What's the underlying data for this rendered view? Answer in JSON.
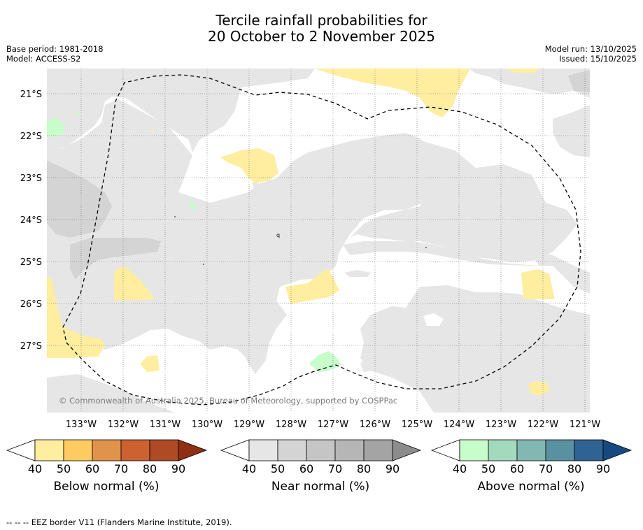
{
  "header": {
    "title_line1": "Tercile rainfall probabilities for",
    "title_line2": "20 October to 2 November 2025",
    "base_period": "Base period: 1981-2018",
    "model": "Model: ACCESS-S2",
    "model_run": "Model run: 13/10/2025",
    "issued": "Issued: 15/10/2025"
  },
  "map": {
    "lat_labels": [
      "21°S",
      "22°S",
      "23°S",
      "24°S",
      "25°S",
      "26°S",
      "27°S"
    ],
    "lon_labels": [
      "133°W",
      "132°W",
      "131°W",
      "130°W",
      "129°W",
      "128°W",
      "127°W",
      "126°W",
      "125°W",
      "124°W",
      "123°W",
      "122°W",
      "121°W"
    ],
    "copyright": "© Commonwealth of Australia 2025, Bureau of Meteorology, supported by COSPPac",
    "marker": "q",
    "colors": {
      "near_normal_40": "#e6e6e6",
      "near_normal_50": "#d4d4d4",
      "below_normal_40": "#ffeda0",
      "above_normal_40": "#c7fccb"
    }
  },
  "legends": [
    {
      "label": "Below normal (%)",
      "ticks": [
        "40",
        "50",
        "60",
        "70",
        "80",
        "90"
      ],
      "colors": [
        "#ffeda0",
        "#fecb62",
        "#e0934a",
        "#cb6230",
        "#ae4a26",
        "#8f2f14"
      ]
    },
    {
      "label": "Near normal (%)",
      "ticks": [
        "40",
        "50",
        "60",
        "70",
        "80",
        "90"
      ],
      "colors": [
        "#e6e6e6",
        "#d4d4d4",
        "#c5c5c5",
        "#b6b6b6",
        "#a4a4a4",
        "#8c8c8c"
      ]
    },
    {
      "label": "Above normal (%)",
      "ticks": [
        "40",
        "50",
        "60",
        "70",
        "80",
        "90"
      ],
      "colors": [
        "#c7fccb",
        "#a3d9bd",
        "#82b8b1",
        "#5a91a0",
        "#2f6393",
        "#16497f"
      ]
    }
  ],
  "footnote": "--  --  -- EEZ border V11 (Flanders Marine Institute, 2019)."
}
